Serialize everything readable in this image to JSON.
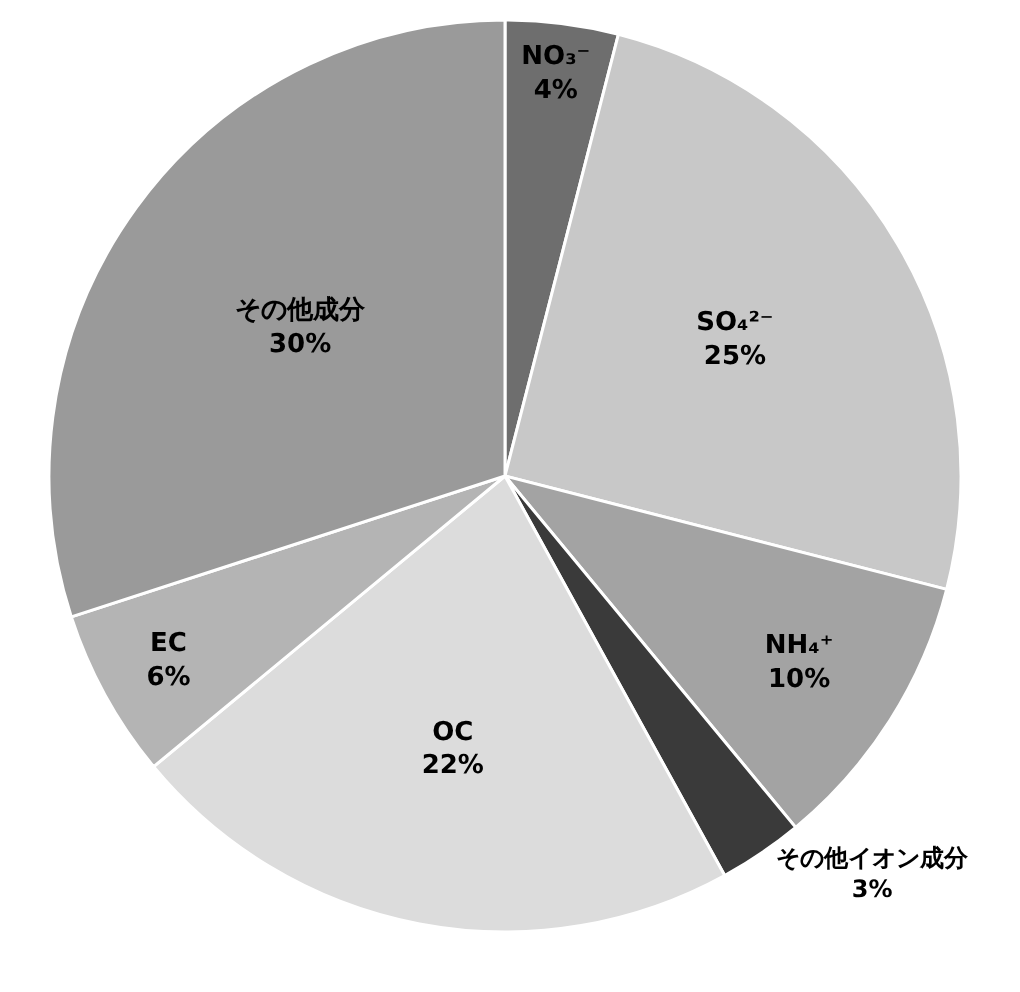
{
  "chart_data": {
    "type": "pie",
    "categories": [
      "NO₃⁻",
      "SO₄²⁻",
      "NH₄⁺",
      "その他イオン成分",
      "OC",
      "EC",
      "その他成分"
    ],
    "values": [
      4,
      25,
      10,
      3,
      22,
      6,
      30
    ],
    "value_labels": [
      "4%",
      "25%",
      "10%",
      "3%",
      "22%",
      "6%",
      "30%"
    ],
    "colors": [
      "#6e6e6e",
      "#c8c8c8",
      "#a3a3a3",
      "#3a3a3a",
      "#dcdcdc",
      "#b4b4b4",
      "#9a9a9a"
    ],
    "legend": false
  }
}
